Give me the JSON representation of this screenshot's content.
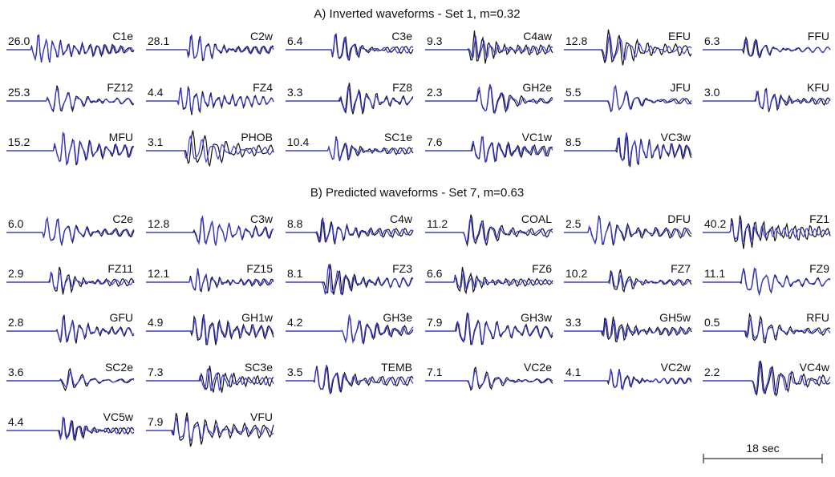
{
  "sections": [
    {
      "title": "A) Inverted waveforms - Set 1, m=0.32",
      "panels": [
        {
          "station": "C1e",
          "amplitude": "26.0"
        },
        {
          "station": "C2w",
          "amplitude": "28.1"
        },
        {
          "station": "C3e",
          "amplitude": "6.4"
        },
        {
          "station": "C4aw",
          "amplitude": "9.3"
        },
        {
          "station": "EFU",
          "amplitude": "12.8"
        },
        {
          "station": "FFU",
          "amplitude": "6.3"
        },
        {
          "station": "FZ12",
          "amplitude": "25.3"
        },
        {
          "station": "FZ4",
          "amplitude": "4.4"
        },
        {
          "station": "FZ8",
          "amplitude": "3.3"
        },
        {
          "station": "GH2e",
          "amplitude": "2.3"
        },
        {
          "station": "JFU",
          "amplitude": "5.5"
        },
        {
          "station": "KFU",
          "amplitude": "3.0"
        },
        {
          "station": "MFU",
          "amplitude": "15.2"
        },
        {
          "station": "PHOB",
          "amplitude": "3.1"
        },
        {
          "station": "SC1e",
          "amplitude": "10.4"
        },
        {
          "station": "VC1w",
          "amplitude": "7.6"
        },
        {
          "station": "VC3w",
          "amplitude": "8.5"
        }
      ]
    },
    {
      "title": "B) Predicted waveforms - Set 7, m=0.63",
      "panels": [
        {
          "station": "C2e",
          "amplitude": "6.0"
        },
        {
          "station": "C3w",
          "amplitude": "12.8"
        },
        {
          "station": "C4w",
          "amplitude": "8.8"
        },
        {
          "station": "COAL",
          "amplitude": "11.2"
        },
        {
          "station": "DFU",
          "amplitude": "2.5"
        },
        {
          "station": "FZ1",
          "amplitude": "40.2"
        },
        {
          "station": "FZ11",
          "amplitude": "2.9"
        },
        {
          "station": "FZ15",
          "amplitude": "12.1"
        },
        {
          "station": "FZ3",
          "amplitude": "8.1"
        },
        {
          "station": "FZ6",
          "amplitude": "6.6"
        },
        {
          "station": "FZ7",
          "amplitude": "10.2"
        },
        {
          "station": "FZ9",
          "amplitude": "11.1"
        },
        {
          "station": "GFU",
          "amplitude": "2.8"
        },
        {
          "station": "GH1w",
          "amplitude": "4.9"
        },
        {
          "station": "GH3e",
          "amplitude": "4.2"
        },
        {
          "station": "GH3w",
          "amplitude": "7.9"
        },
        {
          "station": "GH5w",
          "amplitude": "3.3"
        },
        {
          "station": "RFU",
          "amplitude": "0.5"
        },
        {
          "station": "SC2e",
          "amplitude": "3.6"
        },
        {
          "station": "SC3e",
          "amplitude": "7.3"
        },
        {
          "station": "TEMB",
          "amplitude": "3.5"
        },
        {
          "station": "VC2e",
          "amplitude": "7.1"
        },
        {
          "station": "VC2w",
          "amplitude": "4.1"
        },
        {
          "station": "VC4w",
          "amplitude": "2.2"
        },
        {
          "station": "VC5w",
          "amplitude": "4.4"
        },
        {
          "station": "VFU",
          "amplitude": "7.9"
        }
      ]
    }
  ],
  "scale_bar": {
    "label": "18 sec"
  }
}
